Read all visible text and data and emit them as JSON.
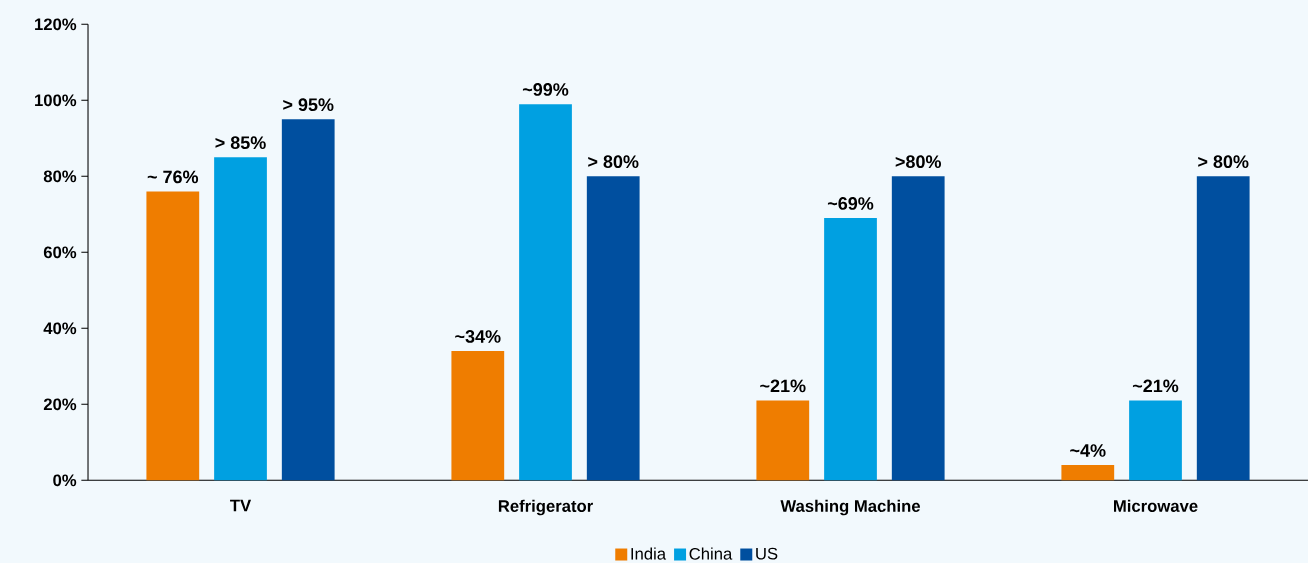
{
  "chart_data": {
    "type": "bar",
    "categories": [
      "TV",
      "Refrigerator",
      "Washing Machine",
      "Microwave"
    ],
    "series": [
      {
        "name": "India",
        "color": "#ef7d00",
        "values": [
          76,
          34,
          21,
          4
        ],
        "value_labels": [
          "~ 76%",
          "~34%",
          "~21%",
          "~4%"
        ]
      },
      {
        "name": "China",
        "color": "#00a0e1",
        "values": [
          85,
          99,
          69,
          21
        ],
        "value_labels": [
          "> 85%",
          "~99%",
          "~69%",
          "~21%"
        ]
      },
      {
        "name": "US",
        "color": "#004f9f",
        "values": [
          95,
          80,
          80,
          80
        ],
        "value_labels": [
          "> 95%",
          "> 80%",
          ">80%",
          "> 80%"
        ]
      }
    ],
    "ylim": [
      0,
      120
    ],
    "yticks": [
      {
        "value": 0,
        "label": "0%"
      },
      {
        "value": 20,
        "label": "20%"
      },
      {
        "value": 40,
        "label": "40%"
      },
      {
        "value": 60,
        "label": "60%"
      },
      {
        "value": 80,
        "label": "80%"
      },
      {
        "value": 100,
        "label": "100%"
      },
      {
        "value": 120,
        "label": "120%"
      }
    ],
    "legend": "bottom"
  }
}
